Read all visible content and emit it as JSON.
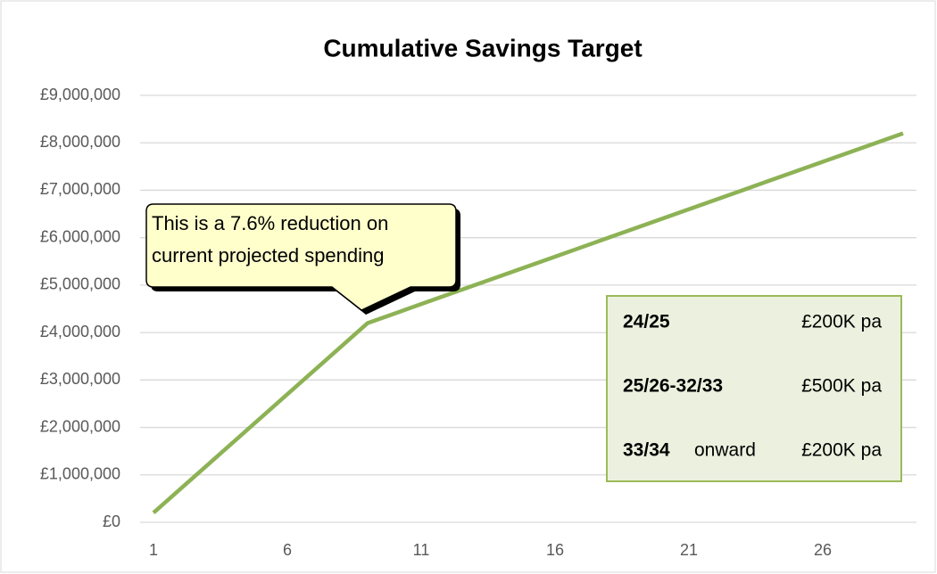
{
  "chart_data": {
    "type": "line",
    "title": "Cumulative Savings Target",
    "x": [
      1,
      2,
      3,
      4,
      5,
      6,
      7,
      8,
      9,
      10,
      11,
      12,
      13,
      14,
      15,
      16,
      17,
      18,
      19,
      20,
      21,
      22,
      23,
      24,
      25,
      26,
      27,
      28,
      29
    ],
    "series": [
      {
        "name": "Cumulative savings",
        "color": "#8db255",
        "values": [
          200000,
          700000,
          1200000,
          1700000,
          2200000,
          2700000,
          3200000,
          3700000,
          4200000,
          4400000,
          4600000,
          4800000,
          5000000,
          5200000,
          5400000,
          5600000,
          5800000,
          6000000,
          6200000,
          6400000,
          6600000,
          6800000,
          7000000,
          7200000,
          7400000,
          7600000,
          7800000,
          8000000,
          8200000
        ]
      }
    ],
    "xlim": [
      0.5,
      29.5
    ],
    "xticks": [
      1,
      6,
      11,
      16,
      21,
      26
    ],
    "ylim": [
      0,
      9000000
    ],
    "yticks": [
      {
        "value": 0,
        "label": "£0"
      },
      {
        "value": 1000000,
        "label": "£1,000,000"
      },
      {
        "value": 2000000,
        "label": "£2,000,000"
      },
      {
        "value": 3000000,
        "label": "£3,000,000"
      },
      {
        "value": 4000000,
        "label": "£4,000,000"
      },
      {
        "value": 5000000,
        "label": "£5,000,000"
      },
      {
        "value": 6000000,
        "label": "£6,000,000"
      },
      {
        "value": 7000000,
        "label": "£7,000,000"
      },
      {
        "value": 8000000,
        "label": "£8,000,000"
      },
      {
        "value": 9000000,
        "label": "£9,000,000"
      }
    ],
    "grid": true,
    "callout": [
      "This is a 7.6% reduction on",
      "current projected spending"
    ],
    "rate_box": [
      {
        "period": "24/25",
        "amount": "£200K pa"
      },
      {
        "period": "25/26-32/33",
        "amount": "£500K pa"
      },
      {
        "period": "33/34",
        "note": "onward",
        "amount": "£200K pa"
      }
    ]
  }
}
